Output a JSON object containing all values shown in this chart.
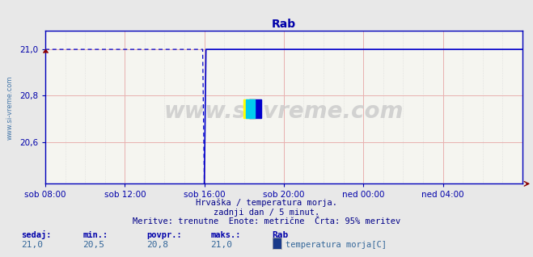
{
  "title": "Rab",
  "bg_color": "#e8e8e8",
  "plot_bg_color": "#f5f5f0",
  "line_color": "#0000cc",
  "grid_color_red": "#e8b0b0",
  "grid_color_gray": "#d0d0d0",
  "axis_color": "#0000bb",
  "tick_color": "#0000aa",
  "ylabel_text": "www.si-vreme.com",
  "title_color": "#0000aa",
  "subtitle1": "Hrvaška / temperatura morja.",
  "subtitle2": "zadnji dan / 5 minut.",
  "subtitle3": "Meritve: trenutne  Enote: metrične  Črta: 95% meritev",
  "footer_labels": [
    "sedaj:",
    "min.:",
    "povpr.:",
    "maks.:"
  ],
  "footer_values": [
    "21,0",
    "20,5",
    "20,8",
    "21,0"
  ],
  "legend_station": "Rab",
  "legend_label": "temperatura morja[C]",
  "legend_color": "#1a3a8a",
  "ylim": [
    20.42,
    21.08
  ],
  "yticks": [
    20.6,
    20.8,
    21.0
  ],
  "xlim_start": 0,
  "xlim_end": 288,
  "xtick_positions": [
    0,
    48,
    96,
    144,
    192,
    240
  ],
  "xtick_labels": [
    "sob 08:00",
    "sob 12:00",
    "sob 16:00",
    "sob 20:00",
    "ned 00:00",
    "ned 04:00"
  ],
  "watermark": "www.si-vreme.com",
  "transition_x": 96,
  "dip_x": 96,
  "dip_bottom": 20.42,
  "flat_value": 21.0
}
